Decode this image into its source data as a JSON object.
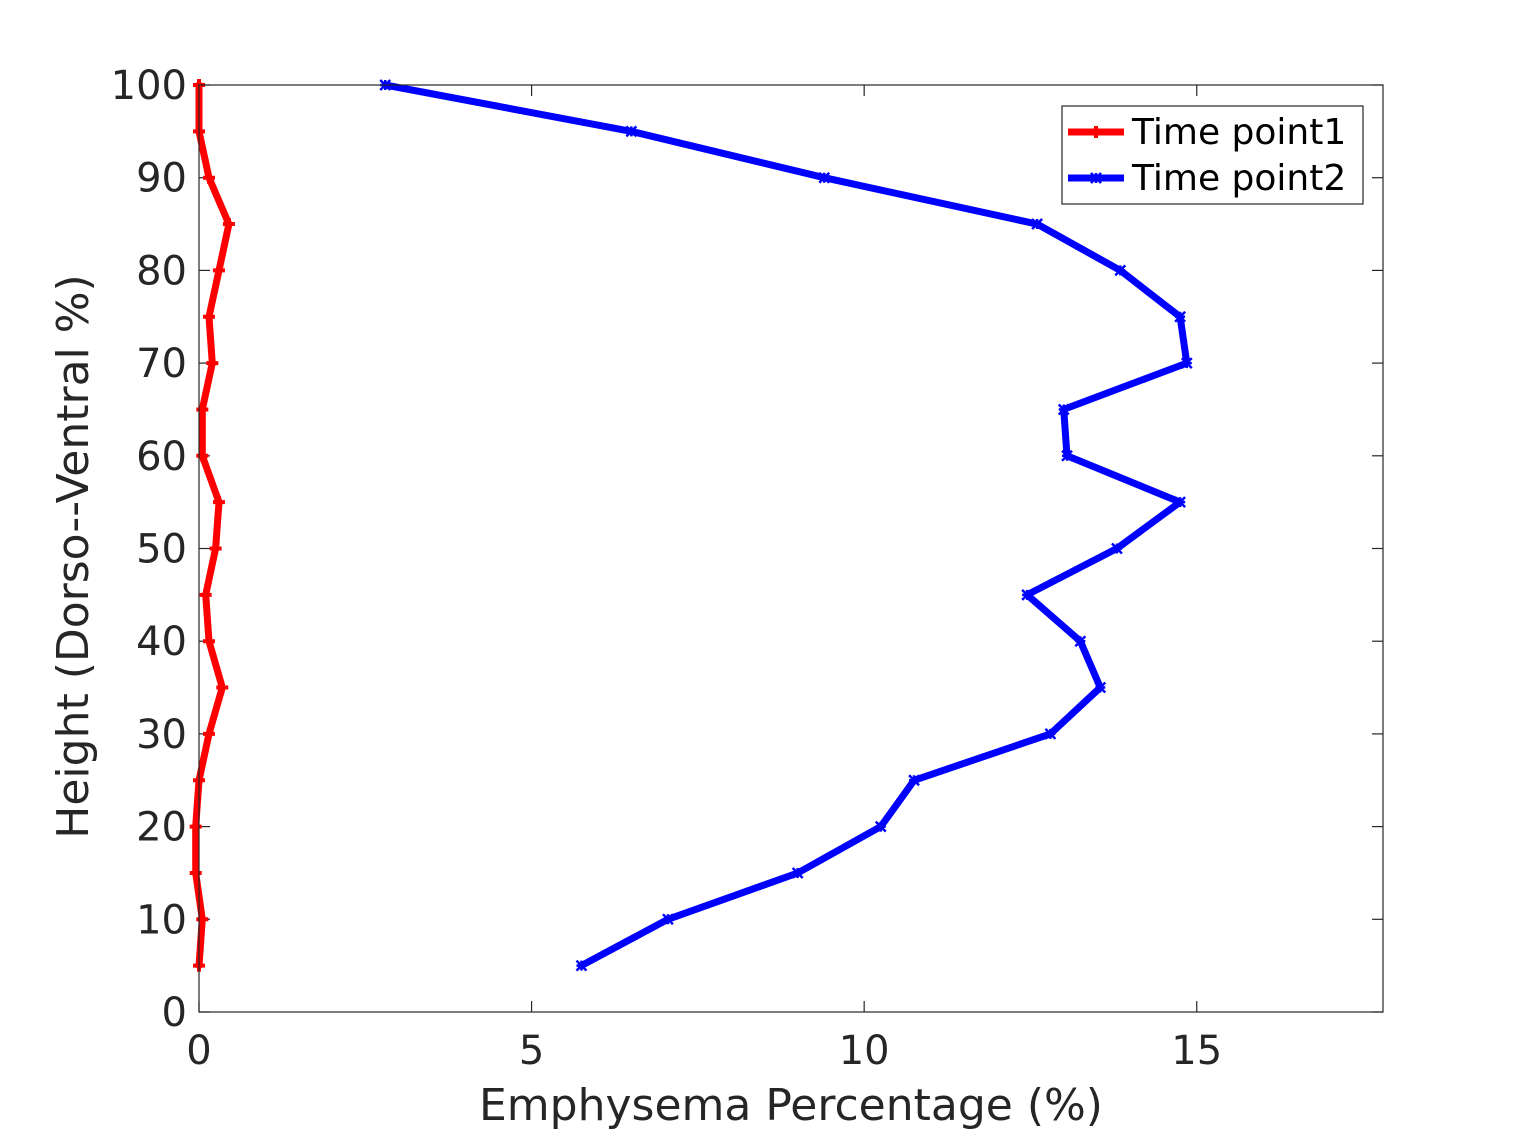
{
  "chart_data": {
    "type": "line",
    "xlabel": "Emphysema Percentage (%)",
    "ylabel": "Height (Dorso--Ventral %)",
    "xlim": [
      0,
      17.8
    ],
    "ylim": [
      0,
      100
    ],
    "xticks": [
      0,
      5,
      10,
      15
    ],
    "yticks": [
      0,
      10,
      20,
      30,
      40,
      50,
      60,
      70,
      80,
      90,
      100
    ],
    "grid": false,
    "legend_position": "top-right",
    "series": [
      {
        "name": "Time point1",
        "color": "#ff0000",
        "marker": "plus",
        "points": [
          {
            "x": 0.0,
            "y": 100
          },
          {
            "x": 0.0,
            "y": 95
          },
          {
            "x": 0.15,
            "y": 90
          },
          {
            "x": 0.45,
            "y": 85
          },
          {
            "x": 0.3,
            "y": 80
          },
          {
            "x": 0.15,
            "y": 75
          },
          {
            "x": 0.2,
            "y": 70
          },
          {
            "x": 0.05,
            "y": 65
          },
          {
            "x": 0.05,
            "y": 60
          },
          {
            "x": 0.3,
            "y": 55
          },
          {
            "x": 0.25,
            "y": 50
          },
          {
            "x": 0.1,
            "y": 45
          },
          {
            "x": 0.15,
            "y": 40
          },
          {
            "x": 0.35,
            "y": 35
          },
          {
            "x": 0.15,
            "y": 30
          },
          {
            "x": 0.0,
            "y": 25
          },
          {
            "x": -0.05,
            "y": 20
          },
          {
            "x": -0.05,
            "y": 15
          },
          {
            "x": 0.05,
            "y": 10
          },
          {
            "x": 0.0,
            "y": 5
          }
        ]
      },
      {
        "name": "Time point2",
        "color": "#0000ff",
        "marker": "star",
        "points": [
          {
            "x": 2.8,
            "y": 100
          },
          {
            "x": 6.5,
            "y": 95
          },
          {
            "x": 9.4,
            "y": 90
          },
          {
            "x": 12.6,
            "y": 85
          },
          {
            "x": 13.85,
            "y": 80
          },
          {
            "x": 14.75,
            "y": 75
          },
          {
            "x": 14.85,
            "y": 70
          },
          {
            "x": 13.0,
            "y": 65
          },
          {
            "x": 13.05,
            "y": 60
          },
          {
            "x": 14.75,
            "y": 55
          },
          {
            "x": 13.8,
            "y": 50
          },
          {
            "x": 12.45,
            "y": 45
          },
          {
            "x": 13.25,
            "y": 40
          },
          {
            "x": 13.55,
            "y": 35
          },
          {
            "x": 12.8,
            "y": 30
          },
          {
            "x": 10.75,
            "y": 25
          },
          {
            "x": 10.25,
            "y": 20
          },
          {
            "x": 9.0,
            "y": 15
          },
          {
            "x": 7.05,
            "y": 10
          },
          {
            "x": 5.75,
            "y": 5
          }
        ]
      }
    ]
  }
}
